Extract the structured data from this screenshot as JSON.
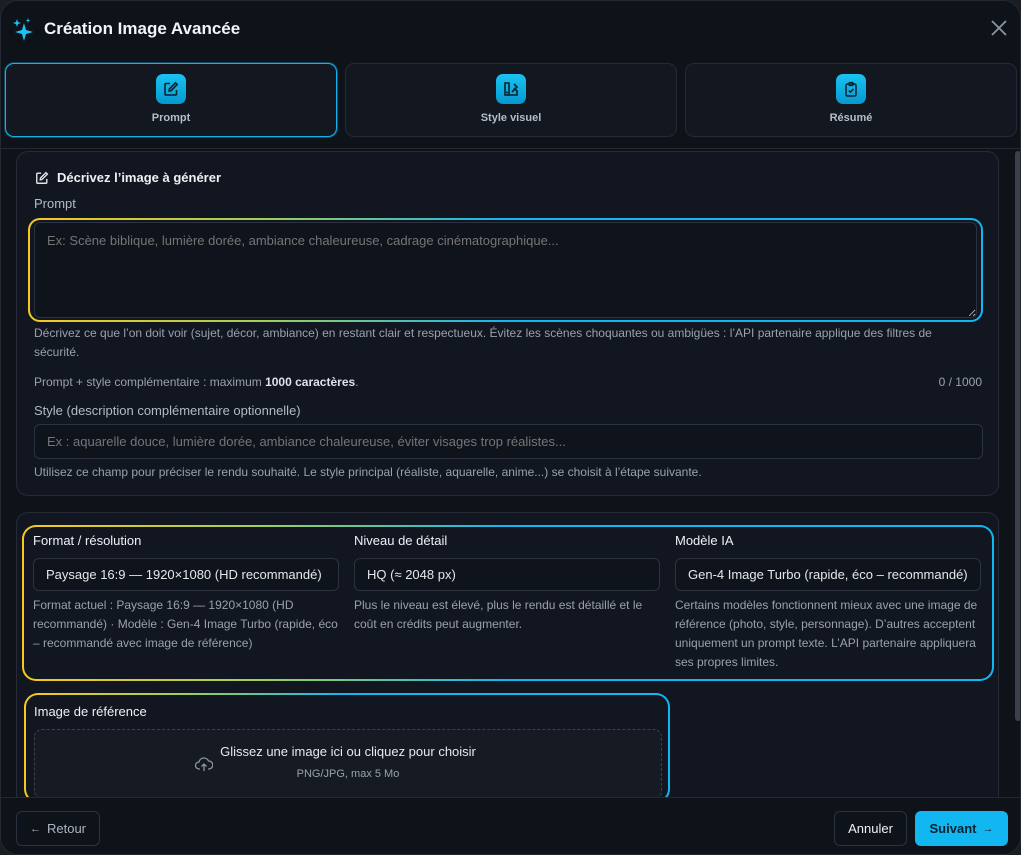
{
  "header": {
    "title": "Création Image Avancée",
    "icon": "sparkles-icon",
    "close_icon": "close-icon"
  },
  "steps": [
    {
      "label": "Prompt",
      "icon": "edit-icon",
      "active": true
    },
    {
      "label": "Style visuel",
      "icon": "palette-icon",
      "active": false
    },
    {
      "label": "Résumé",
      "icon": "clipboard-check-icon",
      "active": false
    }
  ],
  "describe": {
    "title": "Décrivez l’image à générer",
    "prompt_label": "Prompt",
    "prompt_value": "",
    "prompt_placeholder": "Ex: Scène biblique, lumière dorée, ambiance chaleureuse, cadrage cinématographique...",
    "prompt_help": "Décrivez ce que l’on doit voir (sujet, décor, ambiance) en restant clair et respectueux. Évitez les scènes choquantes ou ambigües : l’API partenaire applique des filtres de sécurité.",
    "limit_prefix": "Prompt + style complémentaire : maximum ",
    "limit_bold": "1000 caractères",
    "limit_suffix": ".",
    "char_count": "0 / 1000",
    "style_label": "Style (description complémentaire optionnelle)",
    "style_value": "",
    "style_placeholder": "Ex : aquarelle douce, lumière dorée, ambiance chaleureuse, éviter visages trop réalistes...",
    "style_help": "Utilisez ce champ pour préciser le rendu souhaité. Le style principal (réaliste, aquarelle, anime...) se choisit à l’étape suivante."
  },
  "settings": {
    "format": {
      "label": "Format / résolution",
      "value": "Paysage 16:9 — 1920×1080 (HD recommandé)",
      "help": "Format actuel : Paysage 16:9 — 1920×1080 (HD recommandé) · Modèle : Gen-4 Image Turbo (rapide, éco – recommandé avec image de référence)"
    },
    "detail": {
      "label": "Niveau de détail",
      "value": "HQ (≈ 2048 px)",
      "help": "Plus le niveau est élevé, plus le rendu est détaillé et le coût en crédits peut augmenter."
    },
    "model": {
      "label": "Modèle IA",
      "value": "Gen-4 Image Turbo (rapide, éco – recommandé)",
      "help": "Certains modèles fonctionnent mieux avec une image de référence (photo, style, personnage). D’autres acceptent uniquement un prompt texte. L’API partenaire appliquera ses propres limites."
    }
  },
  "reference": {
    "label": "Image de référence",
    "drop_text": "Glissez une image ici ou cliquez pour choisir",
    "drop_hint": "PNG/JPG, max 5 Mo",
    "icon": "upload-cloud-icon"
  },
  "footer": {
    "back": "Retour",
    "cancel": "Annuler",
    "next": "Suivant"
  },
  "colors": {
    "accent": "#12b6f0",
    "gradient_start": "#f7c91d",
    "background": "#0e1219"
  }
}
